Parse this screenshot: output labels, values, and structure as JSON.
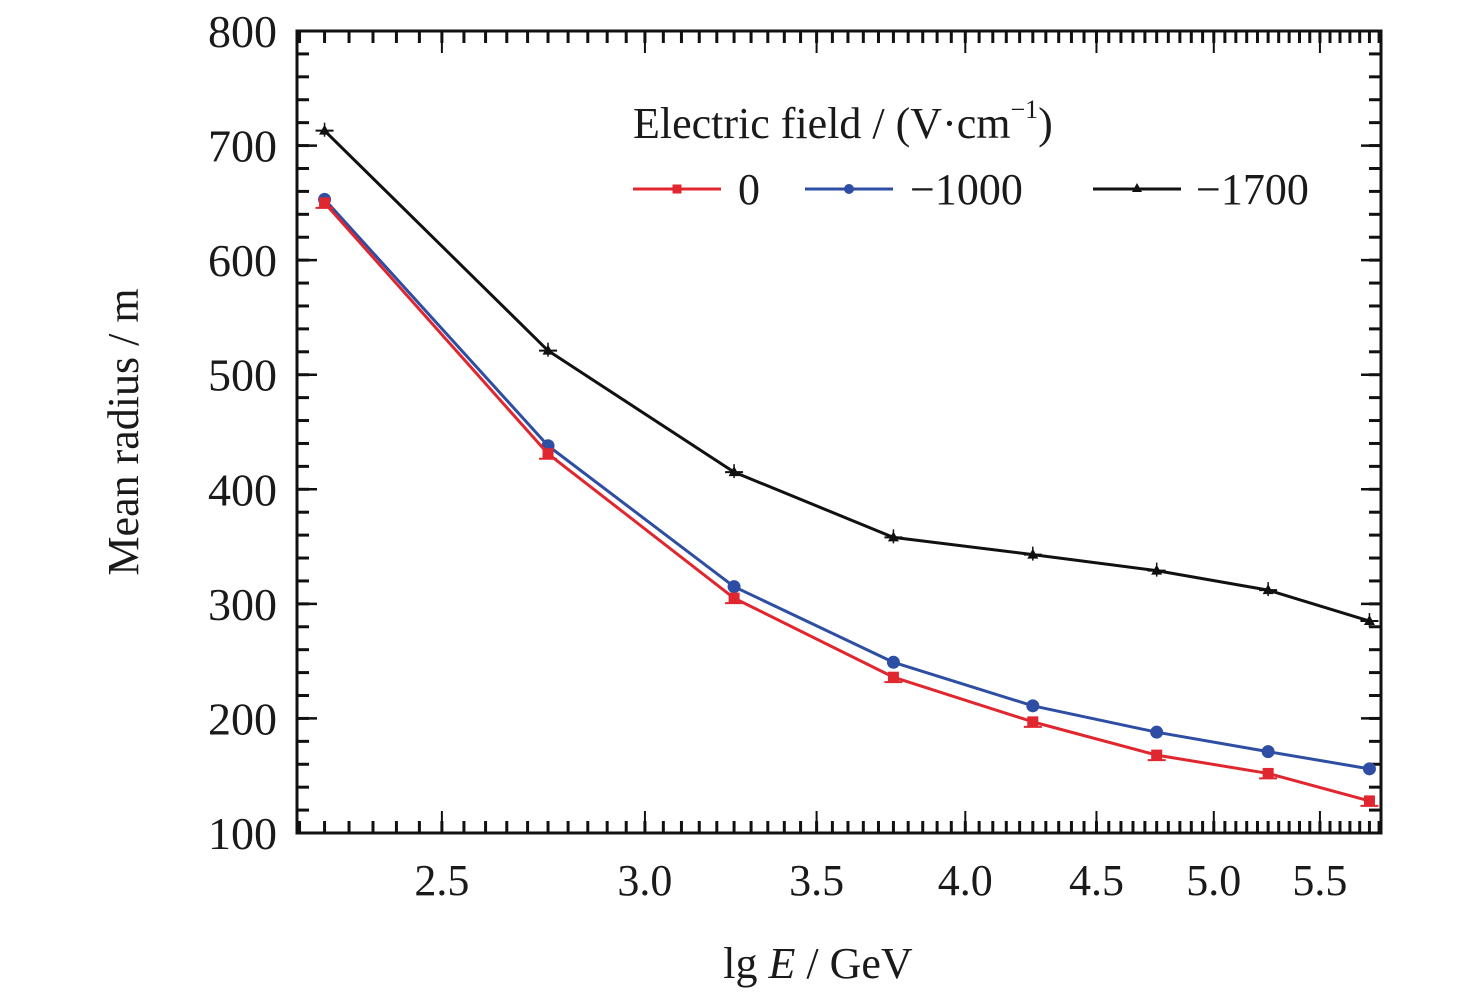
{
  "chart_data": {
    "type": "line",
    "title": "",
    "xlabel": {
      "prefix": "lg ",
      "italic": "E",
      "suffix": " / GeV"
    },
    "ylabel": "Mean radius / m",
    "x_scale": "log",
    "xlim": [
      2.195,
      5.81
    ],
    "ylim": [
      100,
      800
    ],
    "xticks": [
      2.5,
      3.0,
      3.5,
      4.0,
      4.5,
      5.0,
      5.5
    ],
    "xtick_labels": [
      "2.5",
      "3.0",
      "3.5",
      "4.0",
      "4.5",
      "5.0",
      "5.5"
    ],
    "x_minor_step": 0.05,
    "yticks": [
      100,
      200,
      300,
      400,
      500,
      600,
      700,
      800
    ],
    "ytick_labels": [
      "100",
      "200",
      "300",
      "400",
      "500",
      "600",
      "700",
      "800"
    ],
    "y_minor_step": 20,
    "grid": false,
    "legend": {
      "title": {
        "main": "Electric field / (V·cm",
        "sup": "−1",
        "close": ")"
      },
      "placement": "top-right",
      "entries": [
        "0",
        "−1000",
        "−1700"
      ]
    },
    "x": [
      2.25,
      2.75,
      3.25,
      3.75,
      4.25,
      4.75,
      5.25,
      5.75
    ],
    "series": [
      {
        "name": "0",
        "color": "#e0262e",
        "marker": "square",
        "values": [
          650,
          431,
          305,
          236,
          197,
          168,
          152,
          128
        ]
      },
      {
        "name": "−1000",
        "color": "#2e4ea3",
        "marker": "circle",
        "values": [
          653,
          438,
          315,
          249,
          211,
          188,
          171,
          156
        ]
      },
      {
        "name": "−1700",
        "color": "#111111",
        "marker": "triangle",
        "values": [
          713,
          521,
          415,
          358,
          343,
          329,
          312,
          285
        ]
      }
    ]
  }
}
